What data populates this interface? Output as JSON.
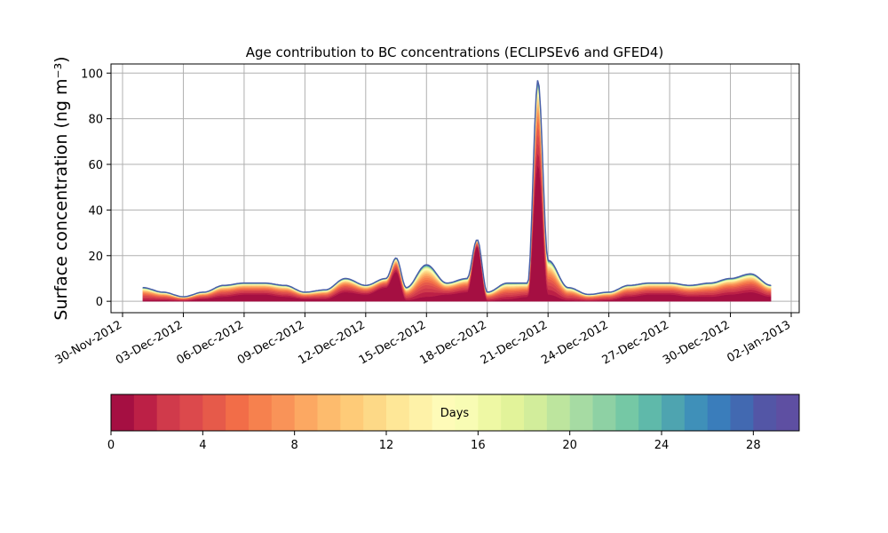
{
  "chart_data": {
    "type": "area",
    "stacked": true,
    "title": "Age contribution to BC concentrations (ECLIPSEv6 and GFED4)",
    "ylabel": "Surface concentration (ng m⁻³)",
    "xlabel": "",
    "xlim": [
      "2012-11-30",
      "2013-01-02"
    ],
    "ylim": [
      -5,
      104
    ],
    "grid": true,
    "x_ticks": [
      "30-Nov-2012",
      "03-Dec-2012",
      "06-Dec-2012",
      "09-Dec-2012",
      "12-Dec-2012",
      "15-Dec-2012",
      "18-Dec-2012",
      "21-Dec-2012",
      "24-Dec-2012",
      "27-Dec-2012",
      "30-Dec-2012",
      "02-Jan-2013"
    ],
    "y_ticks": [
      0,
      20,
      40,
      60,
      80,
      100
    ],
    "x": [
      "2012-12-01",
      "2012-12-02",
      "2012-12-03",
      "2012-12-04",
      "2012-12-05",
      "2012-12-06",
      "2012-12-07",
      "2012-12-08",
      "2012-12-09",
      "2012-12-10",
      "2012-12-11",
      "2012-12-12",
      "2012-12-13",
      "2012-12-13T12:00",
      "2012-12-14",
      "2012-12-15",
      "2012-12-16",
      "2012-12-17",
      "2012-12-17T12:00",
      "2012-12-18",
      "2012-12-19",
      "2012-12-20",
      "2012-12-20T12:00",
      "2012-12-21",
      "2012-12-22",
      "2012-12-23",
      "2012-12-24",
      "2012-12-25",
      "2012-12-26",
      "2012-12-27",
      "2012-12-28",
      "2012-12-29",
      "2012-12-30",
      "2012-12-31",
      "2013-01-01"
    ],
    "total": [
      6,
      4,
      2,
      4,
      7,
      8,
      8,
      7,
      4,
      5,
      10,
      7,
      10,
      19,
      6,
      16,
      8,
      10,
      27,
      4,
      8,
      8,
      97,
      18,
      6,
      3,
      4,
      7,
      8,
      8,
      7,
      8,
      10,
      12,
      7
    ],
    "age_0_1_days": [
      0.5,
      0.5,
      0.2,
      1,
      2,
      3,
      3,
      2,
      1,
      1,
      4,
      3,
      6,
      13,
      0.5,
      2,
      3,
      4,
      24,
      0.2,
      1,
      2,
      60,
      3,
      0.5,
      0.2,
      0.5,
      2,
      3,
      3,
      2,
      2,
      3,
      4,
      2
    ],
    "colorbar": {
      "label": "Days",
      "min": 0,
      "max": 30,
      "ticks": [
        0,
        4,
        8,
        12,
        16,
        20,
        24,
        28
      ],
      "colors": [
        "#a50f42",
        "#bc2046",
        "#d03a4b",
        "#dc494c",
        "#e65a4a",
        "#f26d48",
        "#f6814e",
        "#f99358",
        "#fca862",
        "#fdbb6d",
        "#fecb78",
        "#fdd987",
        "#fee797",
        "#fef2a8",
        "#fefbb8",
        "#f8fcb4",
        "#eef8a4",
        "#e2f39a",
        "#d2ed9b",
        "#bde59e",
        "#a6dba3",
        "#8ed1a4",
        "#75c8a5",
        "#5fb9aa",
        "#4ea4b0",
        "#3f90b9",
        "#3a7dbb",
        "#4269b1",
        "#5356a6",
        "#5e4fa2"
      ]
    }
  }
}
